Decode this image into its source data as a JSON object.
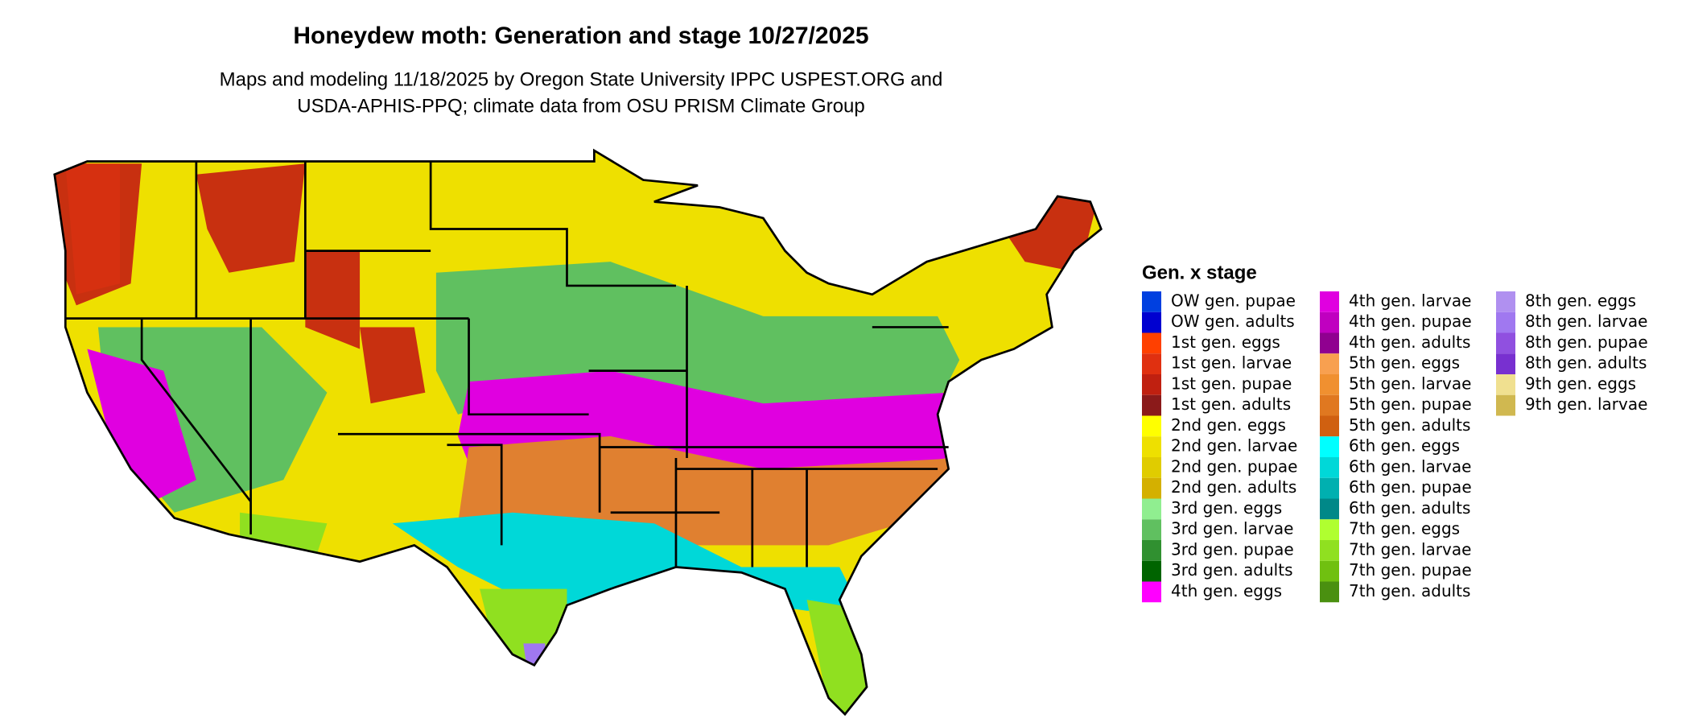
{
  "title": "Honeydew moth: Generation and stage 10/27/2025",
  "subtitle": [
    "Maps and modeling 11/18/2025 by Oregon State University IPPC USPEST.ORG and",
    "USDA-APHIS-PPQ; climate data from OSU PRISM Climate Group"
  ],
  "legend": {
    "title": "Gen. x stage",
    "items": [
      {
        "name": "OW gen. pupae",
        "color": "#0040e0"
      },
      {
        "name": "OW gen. adults",
        "color": "#0000d0"
      },
      {
        "name": "1st gen. eggs",
        "color": "#ff4000"
      },
      {
        "name": "1st gen. larvae",
        "color": "#e03010"
      },
      {
        "name": "1st gen. pupae",
        "color": "#c02010"
      },
      {
        "name": "1st gen. adults",
        "color": "#8b1a1a"
      },
      {
        "name": "2nd gen. eggs",
        "color": "#ffff00"
      },
      {
        "name": "2nd gen. larvae",
        "color": "#eee000"
      },
      {
        "name": "2nd gen. pupae",
        "color": "#e0cc00"
      },
      {
        "name": "2nd gen. adults",
        "color": "#d4b000"
      },
      {
        "name": "3rd gen. eggs",
        "color": "#90ee90"
      },
      {
        "name": "3rd gen. larvae",
        "color": "#60c060"
      },
      {
        "name": "3rd gen. pupae",
        "color": "#309030"
      },
      {
        "name": "3rd gen. adults",
        "color": "#006400"
      },
      {
        "name": "4th gen. eggs",
        "color": "#ff00ff"
      },
      {
        "name": "4th gen. larvae",
        "color": "#e000e0"
      },
      {
        "name": "4th gen. pupae",
        "color": "#c000c0"
      },
      {
        "name": "4th gen. adults",
        "color": "#900090"
      },
      {
        "name": "5th gen. eggs",
        "color": "#f8a050"
      },
      {
        "name": "5th gen. larvae",
        "color": "#f09030"
      },
      {
        "name": "5th gen. pupae",
        "color": "#e07820"
      },
      {
        "name": "5th gen. adults",
        "color": "#d06010"
      },
      {
        "name": "6th gen. eggs",
        "color": "#00ffff"
      },
      {
        "name": "6th gen. larvae",
        "color": "#00d8d8"
      },
      {
        "name": "6th gen. pupae",
        "color": "#00b0b0"
      },
      {
        "name": "6th gen. adults",
        "color": "#008888"
      },
      {
        "name": "7th gen. eggs",
        "color": "#b0ff30"
      },
      {
        "name": "7th gen. larvae",
        "color": "#90e020"
      },
      {
        "name": "7th gen. pupae",
        "color": "#70c010"
      },
      {
        "name": "7th gen. adults",
        "color": "#4a9010"
      },
      {
        "name": "8th gen. eggs",
        "color": "#b090f0"
      },
      {
        "name": "8th gen. larvae",
        "color": "#a078f0"
      },
      {
        "name": "8th gen. pupae",
        "color": "#9050e0"
      },
      {
        "name": "8th gen. adults",
        "color": "#7830d0"
      },
      {
        "name": "9th gen. eggs",
        "color": "#f0e090"
      },
      {
        "name": "9th gen. larvae",
        "color": "#d0b850"
      }
    ]
  }
}
